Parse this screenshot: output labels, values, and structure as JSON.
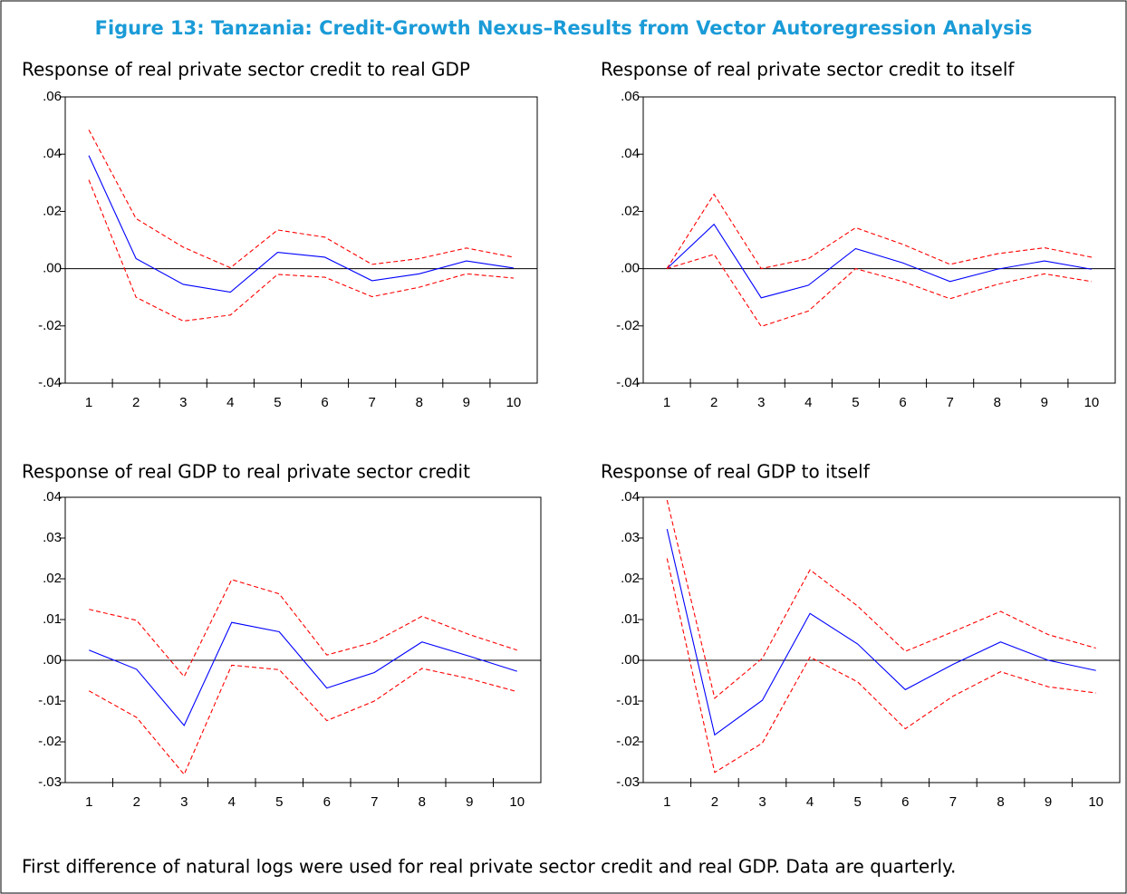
{
  "title": "Figure 13: Tanzania: Credit-Growth Nexus–Results from Vector Autoregression Analysis",
  "note": "First difference of natural logs were used for real private sector credit and real GDP.  Data are quarterly.",
  "chart_data": [
    {
      "type": "line",
      "title": "Response of real private sector credit to real GDP",
      "categories": [
        "1",
        "2",
        "3",
        "4",
        "5",
        "6",
        "7",
        "8",
        "9",
        "10"
      ],
      "ylim": [
        -0.04,
        0.06
      ],
      "yticks": [
        {
          "value": -0.04,
          "label": "-.04"
        },
        {
          "value": -0.02,
          "label": "-.02"
        },
        {
          "value": 0,
          "label": ".00"
        },
        {
          "value": 0.02,
          "label": ".02"
        },
        {
          "value": 0.04,
          "label": ".04"
        },
        {
          "value": 0.06,
          "label": ".06"
        }
      ],
      "series": [
        {
          "color": "#0000ff",
          "style": "solid",
          "values": [
            0.0395,
            0.0035,
            -0.0055,
            -0.0082,
            0.0057,
            0.004,
            -0.0042,
            -0.0018,
            0.0027,
            0.0002
          ]
        },
        {
          "color": "#ff0000",
          "style": "dashed",
          "values": [
            0.0485,
            0.0175,
            0.0075,
            0.0003,
            0.0135,
            0.011,
            0.0015,
            0.0035,
            0.0072,
            0.004
          ]
        },
        {
          "color": "#ff0000",
          "style": "dashed",
          "values": [
            0.031,
            -0.01,
            -0.0183,
            -0.0162,
            -0.002,
            -0.003,
            -0.0098,
            -0.0065,
            -0.0018,
            -0.0033
          ]
        }
      ]
    },
    {
      "type": "line",
      "title": "Response of real private sector credit to itself",
      "categories": [
        "1",
        "2",
        "3",
        "4",
        "5",
        "6",
        "7",
        "8",
        "9",
        "10"
      ],
      "ylim": [
        -0.04,
        0.06
      ],
      "yticks": [
        {
          "value": -0.04,
          "label": "-.04"
        },
        {
          "value": -0.02,
          "label": "-.02"
        },
        {
          "value": 0,
          "label": ".00"
        },
        {
          "value": 0.02,
          "label": ".02"
        },
        {
          "value": 0.04,
          "label": ".04"
        },
        {
          "value": 0.06,
          "label": ".06"
        }
      ],
      "series": [
        {
          "color": "#0000ff",
          "style": "solid",
          "values": [
            0,
            0.0155,
            -0.0102,
            -0.0058,
            0.007,
            0.002,
            -0.0045,
            -0.0002,
            0.0027,
            -0.0002
          ]
        },
        {
          "color": "#ff0000",
          "style": "dashed",
          "values": [
            0,
            0.026,
            0,
            0.0035,
            0.0143,
            0.0085,
            0.0015,
            0.0052,
            0.0073,
            0.004
          ]
        },
        {
          "color": "#ff0000",
          "style": "dashed",
          "values": [
            0,
            0.005,
            -0.0202,
            -0.0148,
            0,
            -0.0045,
            -0.0105,
            -0.0055,
            -0.0018,
            -0.0045
          ]
        }
      ]
    },
    {
      "type": "line",
      "title": "Response of real GDP to real private sector credit",
      "categories": [
        "1",
        "2",
        "3",
        "4",
        "5",
        "6",
        "7",
        "8",
        "9",
        "10"
      ],
      "ylim": [
        -0.03,
        0.04
      ],
      "yticks": [
        {
          "value": -0.03,
          "label": "-.03"
        },
        {
          "value": -0.02,
          "label": "-.02"
        },
        {
          "value": -0.01,
          "label": "-.01"
        },
        {
          "value": 0,
          "label": ".00"
        },
        {
          "value": 0.01,
          "label": ".01"
        },
        {
          "value": 0.02,
          "label": ".02"
        },
        {
          "value": 0.03,
          "label": ".03"
        },
        {
          "value": 0.04,
          "label": ".04"
        }
      ],
      "series": [
        {
          "color": "#0000ff",
          "style": "solid",
          "values": [
            0.0025,
            -0.0022,
            -0.016,
            0.0093,
            0.007,
            -0.0068,
            -0.003,
            0.0045,
            0.001,
            -0.0027
          ]
        },
        {
          "color": "#ff0000",
          "style": "dashed",
          "values": [
            0.0125,
            0.0098,
            -0.004,
            0.0198,
            0.0163,
            0.0013,
            0.0045,
            0.0108,
            0.0063,
            0.0025
          ]
        },
        {
          "color": "#ff0000",
          "style": "dashed",
          "values": [
            -0.0075,
            -0.014,
            -0.028,
            -0.0012,
            -0.0023,
            -0.0148,
            -0.01,
            -0.002,
            -0.0045,
            -0.0077
          ]
        }
      ]
    },
    {
      "type": "line",
      "title": "Response of real GDP to itself",
      "categories": [
        "1",
        "2",
        "3",
        "4",
        "5",
        "6",
        "7",
        "8",
        "9",
        "10"
      ],
      "ylim": [
        -0.03,
        0.04
      ],
      "yticks": [
        {
          "value": -0.03,
          "label": "-.03"
        },
        {
          "value": -0.02,
          "label": "-.02"
        },
        {
          "value": -0.01,
          "label": "-.01"
        },
        {
          "value": 0,
          "label": ".00"
        },
        {
          "value": 0.01,
          "label": ".01"
        },
        {
          "value": 0.02,
          "label": ".02"
        },
        {
          "value": 0.03,
          "label": ".03"
        },
        {
          "value": 0.04,
          "label": ".04"
        }
      ],
      "series": [
        {
          "color": "#0000ff",
          "style": "solid",
          "values": [
            0.0322,
            -0.0183,
            -0.0098,
            0.0115,
            0.004,
            -0.0072,
            -0.001,
            0.0045,
            0,
            -0.0025
          ]
        },
        {
          "color": "#ff0000",
          "style": "dashed",
          "values": [
            0.0393,
            -0.0093,
            0.0005,
            0.0222,
            0.0133,
            0.0022,
            0.007,
            0.012,
            0.0063,
            0.003
          ]
        },
        {
          "color": "#ff0000",
          "style": "dashed",
          "values": [
            0.025,
            -0.0275,
            -0.0203,
            0.0008,
            -0.0053,
            -0.0168,
            -0.0088,
            -0.0028,
            -0.0065,
            -0.008
          ]
        }
      ]
    }
  ]
}
